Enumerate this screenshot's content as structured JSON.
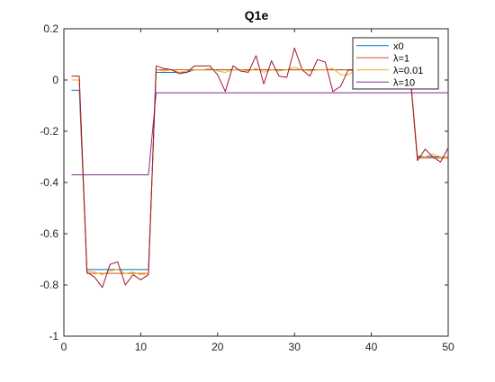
{
  "chart_data": {
    "type": "line",
    "title": "Q1e",
    "xlabel": "",
    "ylabel": "",
    "xlim": [
      0,
      50
    ],
    "ylim": [
      -1,
      0.2
    ],
    "xticks": [
      0,
      10,
      20,
      30,
      40,
      50
    ],
    "yticks": [
      0.2,
      0,
      -0.2,
      -0.4,
      -0.6,
      -0.8,
      -1
    ],
    "ytick_labels": [
      "0.2",
      "0",
      "-0.2",
      "-0.4",
      "-0.6",
      "-0.8",
      "-1"
    ],
    "grid": false,
    "legend_position": "top-right",
    "x": [
      1,
      2,
      3,
      4,
      5,
      6,
      7,
      8,
      9,
      10,
      11,
      12,
      13,
      14,
      15,
      16,
      17,
      18,
      19,
      20,
      21,
      22,
      23,
      24,
      25,
      26,
      27,
      28,
      29,
      30,
      31,
      32,
      33,
      34,
      35,
      36,
      37,
      38,
      39,
      40,
      41,
      42,
      43,
      44,
      45,
      46,
      47,
      48,
      49,
      50
    ],
    "series": [
      {
        "name": "x0",
        "color": "#0072bd",
        "values": [
          -0.04,
          -0.04,
          -0.74,
          -0.74,
          -0.74,
          -0.74,
          -0.74,
          -0.74,
          -0.74,
          -0.74,
          -0.74,
          0.03,
          0.03,
          0.03,
          0.03,
          0.03,
          0.04,
          0.04,
          0.04,
          0.04,
          0.04,
          0.04,
          0.04,
          0.04,
          0.04,
          0.04,
          0.04,
          0.04,
          0.04,
          0.04,
          0.04,
          0.04,
          0.04,
          0.04,
          0.04,
          0.04,
          0.04,
          0.04,
          0.04,
          0.04,
          0.04,
          0.04,
          0.04,
          0.04,
          0.04,
          -0.3,
          -0.3,
          -0.3,
          -0.3,
          -0.3
        ]
      },
      {
        "name": "λ=1",
        "color": "#d95319",
        "values": [
          0.0,
          0.0,
          -0.755,
          -0.755,
          -0.755,
          -0.755,
          -0.755,
          -0.755,
          -0.755,
          -0.755,
          -0.755,
          0.04,
          0.04,
          0.04,
          0.04,
          0.04,
          0.04,
          0.04,
          0.04,
          0.04,
          0.04,
          0.04,
          0.04,
          0.04,
          0.04,
          0.04,
          0.04,
          0.04,
          0.04,
          0.04,
          0.04,
          0.04,
          0.04,
          0.04,
          0.04,
          0.04,
          0.04,
          0.04,
          0.04,
          0.04,
          0.04,
          0.04,
          0.04,
          0.04,
          0.04,
          -0.305,
          -0.305,
          -0.305,
          -0.305,
          -0.305
        ]
      },
      {
        "name": "λ=0.01",
        "color": "#edb120",
        "values": [
          0.0,
          0.0,
          -0.745,
          -0.75,
          -0.76,
          -0.745,
          -0.74,
          -0.755,
          -0.75,
          -0.76,
          -0.755,
          0.04,
          0.035,
          0.04,
          0.03,
          0.035,
          0.04,
          0.04,
          0.045,
          0.035,
          0.03,
          0.04,
          0.04,
          0.035,
          0.045,
          0.03,
          0.04,
          0.035,
          0.04,
          0.05,
          0.04,
          0.035,
          0.04,
          0.04,
          0.045,
          0.02,
          0.02,
          0.04,
          0.045,
          0.04,
          0.04,
          0.045,
          0.04,
          0.035,
          0.04,
          -0.295,
          -0.3,
          -0.29,
          -0.3,
          -0.3
        ]
      },
      {
        "name": "λ=10",
        "color": "#7e2f8e",
        "values": [
          -0.37,
          -0.37,
          -0.37,
          -0.37,
          -0.37,
          -0.37,
          -0.37,
          -0.37,
          -0.37,
          -0.37,
          -0.37,
          -0.05,
          -0.05,
          -0.05,
          -0.05,
          -0.05,
          -0.05,
          -0.05,
          -0.05,
          -0.05,
          -0.05,
          -0.05,
          -0.05,
          -0.05,
          -0.05,
          -0.05,
          -0.05,
          -0.05,
          -0.05,
          -0.05,
          -0.05,
          -0.05,
          -0.05,
          -0.05,
          -0.05,
          -0.05,
          -0.05,
          -0.05,
          -0.05,
          -0.05,
          -0.05,
          -0.05,
          -0.05,
          -0.05,
          -0.05,
          -0.05,
          -0.05,
          -0.05,
          -0.05,
          -0.05
        ]
      },
      {
        "name": "",
        "color": "#a2142f",
        "values": [
          0.015,
          0.015,
          -0.75,
          -0.77,
          -0.81,
          -0.72,
          -0.71,
          -0.8,
          -0.76,
          -0.78,
          -0.76,
          0.055,
          0.045,
          0.04,
          0.025,
          0.03,
          0.055,
          0.055,
          0.055,
          0.02,
          -0.045,
          0.055,
          0.035,
          0.03,
          0.095,
          -0.015,
          0.075,
          0.015,
          0.01,
          0.125,
          0.04,
          0.015,
          0.08,
          0.07,
          -0.045,
          -0.025,
          0.04,
          0.035,
          0.04,
          0.04,
          0.04,
          0.04,
          0.04,
          0.04,
          0.04,
          -0.315,
          -0.27,
          -0.3,
          -0.32,
          -0.265
        ]
      }
    ]
  }
}
